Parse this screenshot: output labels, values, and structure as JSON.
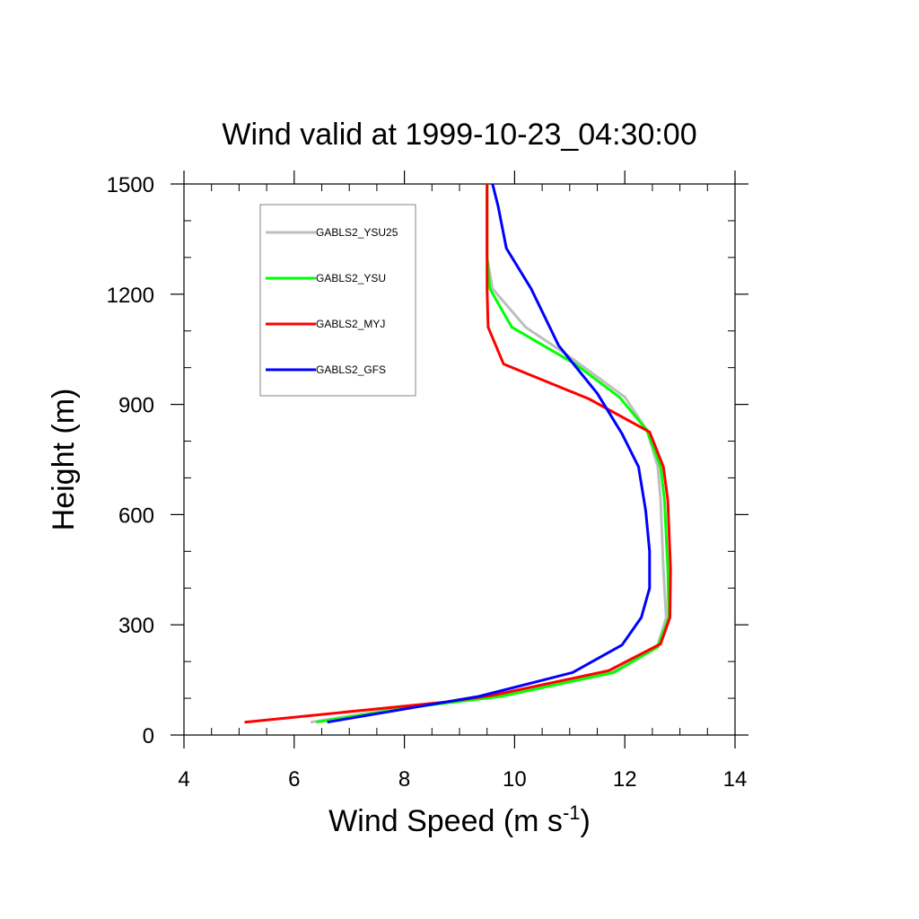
{
  "chart_data": {
    "type": "line",
    "title": "Wind valid at 1999-10-23_04:30:00",
    "xlabel": "Wind Speed (m s",
    "xlabel_superscript": "-1",
    "xlabel_suffix": ")",
    "ylabel": "Height (m)",
    "xlim": [
      4,
      14
    ],
    "ylim": [
      0,
      1500
    ],
    "xticks": [
      "4",
      "6",
      "8",
      "10",
      "12",
      "14"
    ],
    "yticks": [
      "0",
      "300",
      "600",
      "900",
      "1200",
      "1500"
    ],
    "xtick_values": [
      4,
      6,
      8,
      10,
      12,
      14
    ],
    "ytick_values": [
      0,
      300,
      600,
      900,
      1200,
      1500
    ],
    "grid": false,
    "legend_position": "top-left",
    "series": [
      {
        "name": "GABLS2_YSU25",
        "color": "#bebebe",
        "points": [
          [
            6.3,
            35
          ],
          [
            8.0,
            75
          ],
          [
            9.7,
            105
          ],
          [
            11.8,
            175
          ],
          [
            12.6,
            245
          ],
          [
            12.75,
            320
          ],
          [
            12.7,
            450
          ],
          [
            12.65,
            640
          ],
          [
            12.6,
            730
          ],
          [
            12.4,
            830
          ],
          [
            12.0,
            920
          ],
          [
            11.0,
            1030
          ],
          [
            10.2,
            1110
          ],
          [
            9.6,
            1215
          ],
          [
            9.5,
            1300
          ],
          [
            9.5,
            1500
          ]
        ]
      },
      {
        "name": "GABLS2_YSU",
        "color": "#00ff00",
        "points": [
          [
            6.4,
            35
          ],
          [
            8.1,
            75
          ],
          [
            9.75,
            105
          ],
          [
            11.8,
            170
          ],
          [
            12.6,
            240
          ],
          [
            12.8,
            320
          ],
          [
            12.78,
            450
          ],
          [
            12.72,
            640
          ],
          [
            12.65,
            730
          ],
          [
            12.4,
            830
          ],
          [
            11.9,
            920
          ],
          [
            11.1,
            1010
          ],
          [
            9.95,
            1110
          ],
          [
            9.55,
            1215
          ],
          [
            9.5,
            1300
          ],
          [
            9.5,
            1500
          ]
        ]
      },
      {
        "name": "GABLS2_MYJ",
        "color": "#ff0000",
        "points": [
          [
            5.1,
            35
          ],
          [
            8.75,
            90
          ],
          [
            9.6,
            108
          ],
          [
            11.7,
            175
          ],
          [
            12.65,
            248
          ],
          [
            12.82,
            320
          ],
          [
            12.83,
            450
          ],
          [
            12.78,
            640
          ],
          [
            12.7,
            730
          ],
          [
            12.45,
            825
          ],
          [
            11.35,
            915
          ],
          [
            9.8,
            1010
          ],
          [
            9.52,
            1110
          ],
          [
            9.5,
            1215
          ],
          [
            9.5,
            1300
          ],
          [
            9.5,
            1500
          ]
        ]
      },
      {
        "name": "GABLS2_GFS",
        "color": "#0000ff",
        "points": [
          [
            6.6,
            35
          ],
          [
            9.35,
            105
          ],
          [
            11.05,
            170
          ],
          [
            11.95,
            245
          ],
          [
            12.3,
            320
          ],
          [
            12.45,
            400
          ],
          [
            12.45,
            500
          ],
          [
            12.38,
            610
          ],
          [
            12.25,
            730
          ],
          [
            11.95,
            820
          ],
          [
            11.5,
            930
          ],
          [
            10.8,
            1060
          ],
          [
            10.3,
            1215
          ],
          [
            9.85,
            1325
          ],
          [
            9.7,
            1440
          ],
          [
            9.6,
            1500
          ]
        ]
      }
    ]
  }
}
